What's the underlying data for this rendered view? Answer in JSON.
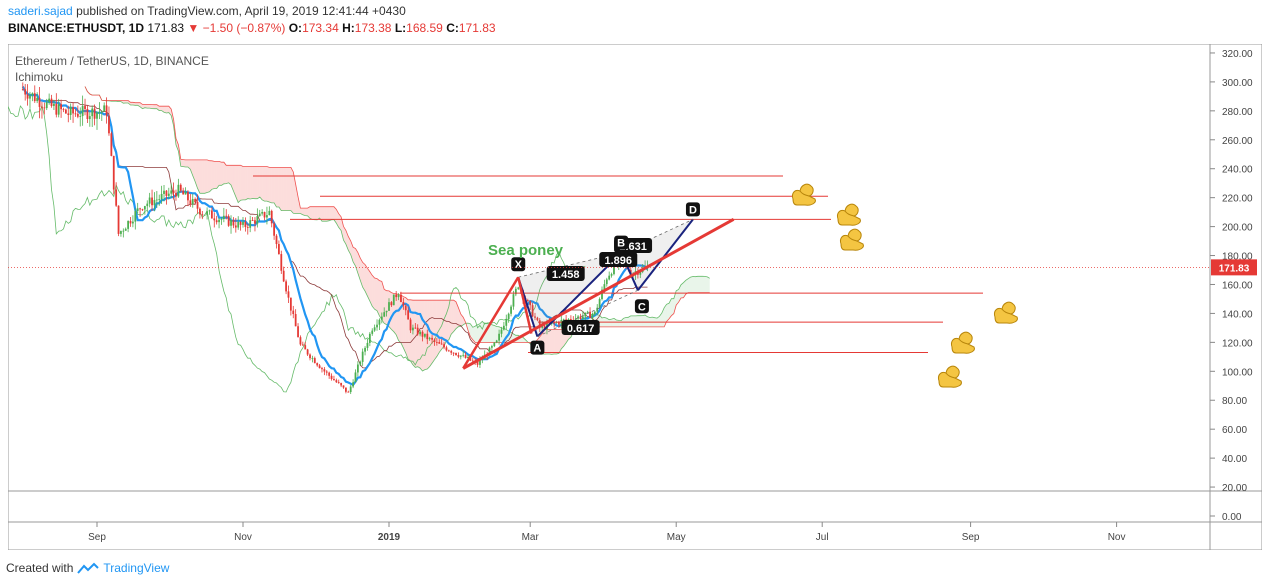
{
  "header": {
    "author": "saderi.sajad",
    "published_text": "published on TradingView.com, April 19, 2019 12:41:44 +0430",
    "symbol": "BINANCE:ETHUSDT, 1D",
    "last": "171.83",
    "change": "−1.50 (−0.87%)",
    "o_label": "O:",
    "o_value": "173.34",
    "h_label": "H:",
    "h_value": "173.38",
    "l_label": "L:",
    "l_value": "168.59",
    "c_label": "C:",
    "c_value": "171.83"
  },
  "legend": {
    "title": "Ethereum / TetherUS, 1D, BINANCE",
    "indicator": "Ichimoku"
  },
  "footer": {
    "created_with": "Created with",
    "brand": "TradingView"
  },
  "annotation_text": "Sea poney",
  "chart_data": {
    "type": "candlestick",
    "title": "Ethereum / TetherUS, 1D, BINANCE",
    "ylim": [
      0,
      330
    ],
    "y_ticks": [
      "320.00",
      "300.00",
      "280.00",
      "260.00",
      "240.00",
      "220.00",
      "200.00",
      "180.00",
      "160.00",
      "140.00",
      "120.00",
      "100.00",
      "80.00",
      "60.00",
      "40.00",
      "20.00",
      "0.00"
    ],
    "y_tick_values": [
      320,
      300,
      280,
      260,
      240,
      220,
      200,
      180,
      160,
      140,
      120,
      100,
      80,
      60,
      40,
      20,
      0
    ],
    "last_price_label": "171.83",
    "last_price": 171.83,
    "x_ticks": [
      "Sep",
      "Nov",
      "2019",
      "Mar",
      "May",
      "Jul",
      "Sep",
      "Nov"
    ],
    "x_tick_dates": [
      "2018-09-01",
      "2018-11-01",
      "2019-01-01",
      "2019-03-01",
      "2019-05-01",
      "2019-07-01",
      "2019-09-01",
      "2019-11-01"
    ],
    "price_anchors": [
      {
        "date": "2018-08-01",
        "price": 295
      },
      {
        "date": "2018-08-10",
        "price": 285
      },
      {
        "date": "2018-08-20",
        "price": 278
      },
      {
        "date": "2018-09-05",
        "price": 280
      },
      {
        "date": "2018-09-10",
        "price": 195
      },
      {
        "date": "2018-09-20",
        "price": 215
      },
      {
        "date": "2018-10-05",
        "price": 225
      },
      {
        "date": "2018-10-15",
        "price": 210
      },
      {
        "date": "2018-11-01",
        "price": 200
      },
      {
        "date": "2018-11-12",
        "price": 210
      },
      {
        "date": "2018-11-20",
        "price": 150
      },
      {
        "date": "2018-11-25",
        "price": 118
      },
      {
        "date": "2018-12-05",
        "price": 100
      },
      {
        "date": "2018-12-15",
        "price": 85
      },
      {
        "date": "2018-12-25",
        "price": 130
      },
      {
        "date": "2019-01-05",
        "price": 155
      },
      {
        "date": "2019-01-10",
        "price": 130
      },
      {
        "date": "2019-01-20",
        "price": 120
      },
      {
        "date": "2019-02-01",
        "price": 110
      },
      {
        "date": "2019-02-07",
        "price": 105
      },
      {
        "date": "2019-02-15",
        "price": 120
      },
      {
        "date": "2019-02-24",
        "price": 160
      },
      {
        "date": "2019-03-05",
        "price": 130
      },
      {
        "date": "2019-03-15",
        "price": 135
      },
      {
        "date": "2019-03-28",
        "price": 140
      },
      {
        "date": "2019-04-02",
        "price": 165
      },
      {
        "date": "2019-04-08",
        "price": 180
      },
      {
        "date": "2019-04-12",
        "price": 168
      },
      {
        "date": "2019-04-19",
        "price": 171.83
      }
    ],
    "horizontal_levels": [
      235,
      221,
      205,
      154,
      134,
      113
    ],
    "harmonic_points": [
      {
        "label": "X",
        "date": "2019-02-24",
        "price": 165
      },
      {
        "label": "A",
        "date": "2019-03-04",
        "price": 124
      },
      {
        "label": "B",
        "date": "2019-04-08",
        "price": 182
      },
      {
        "label": "C",
        "date": "2019-04-15",
        "price": 156
      },
      {
        "label": "D",
        "date": "2019-05-08",
        "price": 205
      }
    ],
    "ratio_labels": [
      "1.458",
      "1.896",
      "1.631",
      "0.617"
    ],
    "trendline": {
      "from": {
        "date": "2019-02-01",
        "price": 102
      },
      "to": {
        "date": "2019-05-25",
        "price": 205
      }
    }
  }
}
